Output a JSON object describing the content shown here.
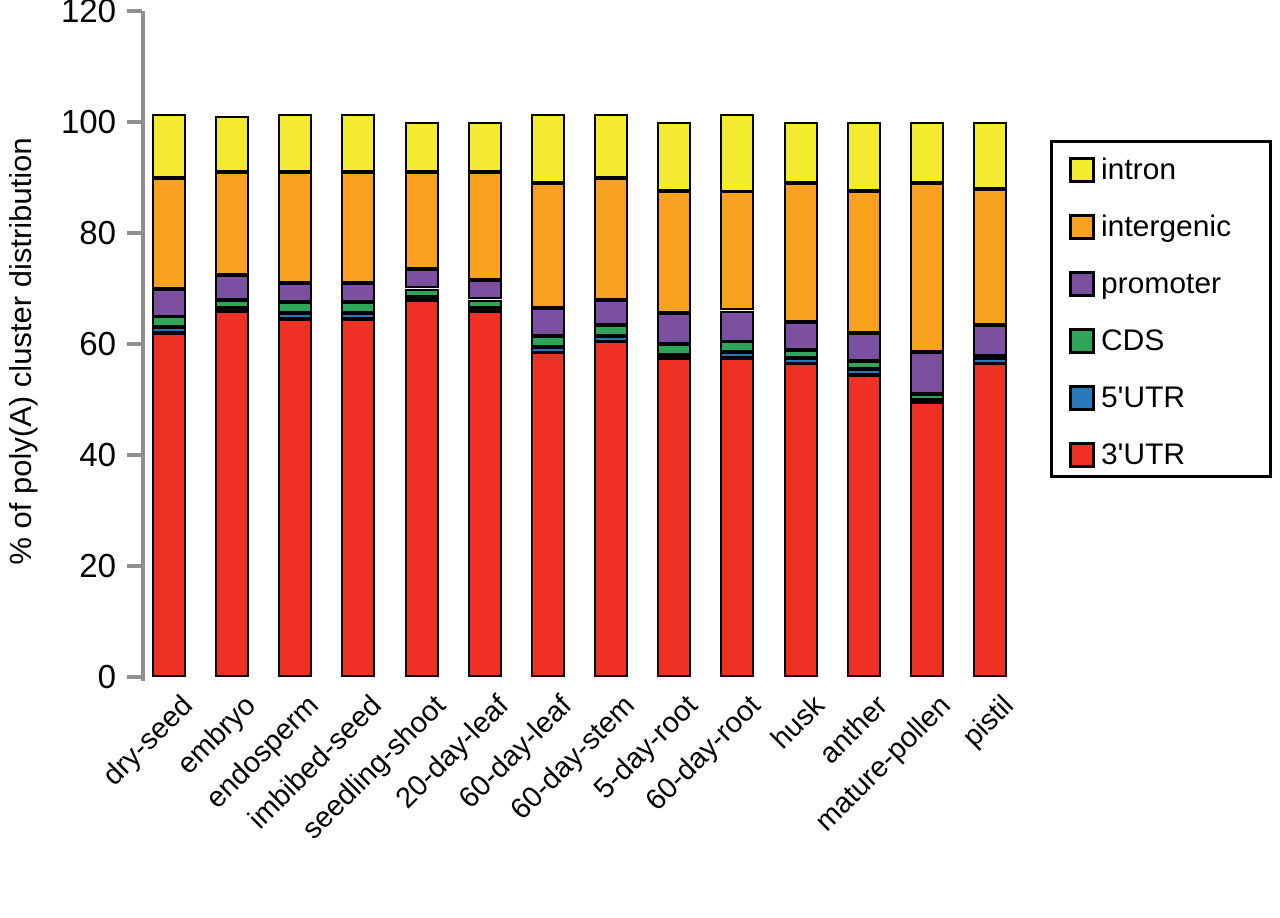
{
  "figure": {
    "background": "#ffffff",
    "axis_color": "#8f8f8f",
    "bar_border_color": "#000000",
    "legend_border_color": "#000000"
  },
  "chart_data": {
    "type": "bar",
    "subtype": "stacked-percentage-bar",
    "title": "",
    "xlabel": "",
    "ylabel": "% of poly(A) cluster distribution",
    "ylim": [
      0,
      120
    ],
    "yticks": [
      0,
      20,
      40,
      60,
      80,
      100,
      120
    ],
    "grid": false,
    "legend_position": "right",
    "legend_order_top_to_bottom": [
      "intron",
      "intergenic",
      "promoter",
      "CDS",
      "5'UTR",
      "3'UTR"
    ],
    "categories": [
      "dry-seed",
      "embryo",
      "endosperm",
      "imbibed-seed",
      "seedling-shoot",
      "20-day-leaf",
      "60-day-leaf",
      "60-day-stem",
      "5-day-root",
      "60-day-root",
      "husk",
      "anther",
      "mature-pollen",
      "pistil"
    ],
    "series": [
      {
        "name": "3'UTR",
        "color": "#EE3124",
        "values": [
          62.0,
          66.0,
          64.5,
          64.5,
          68.0,
          66.0,
          58.5,
          60.5,
          57.5,
          57.5,
          56.5,
          54.5,
          49.5,
          56.5
        ]
      },
      {
        "name": "5'UTR",
        "color": "#2878BE",
        "values": [
          1.0,
          0.5,
          1.0,
          1.0,
          0.5,
          0.5,
          1.0,
          1.0,
          0.5,
          1.0,
          1.0,
          1.0,
          0.5,
          1.0
        ]
      },
      {
        "name": "CDS",
        "color": "#2EA558",
        "values": [
          2.0,
          1.5,
          2.0,
          2.0,
          1.5,
          1.5,
          2.0,
          2.0,
          2.0,
          2.0,
          1.5,
          1.5,
          1.0,
          0.5
        ]
      },
      {
        "name": "promoter",
        "color": "#7B50A0",
        "values": [
          5.0,
          4.5,
          3.5,
          3.5,
          3.5,
          3.5,
          5.0,
          4.5,
          5.5,
          5.5,
          5.0,
          5.0,
          7.5,
          5.5
        ]
      },
      {
        "name": "intergenic",
        "color": "#F7A11F",
        "values": [
          20.0,
          18.5,
          20.0,
          20.0,
          17.5,
          19.5,
          22.5,
          22.0,
          22.0,
          21.5,
          25.0,
          25.5,
          30.5,
          24.5
        ]
      },
      {
        "name": "intron",
        "color": "#F4EB30",
        "values": [
          11.5,
          10.0,
          10.5,
          10.5,
          9.0,
          9.0,
          12.5,
          11.5,
          12.5,
          14.0,
          11.0,
          12.5,
          11.0,
          12.0
        ]
      }
    ]
  }
}
